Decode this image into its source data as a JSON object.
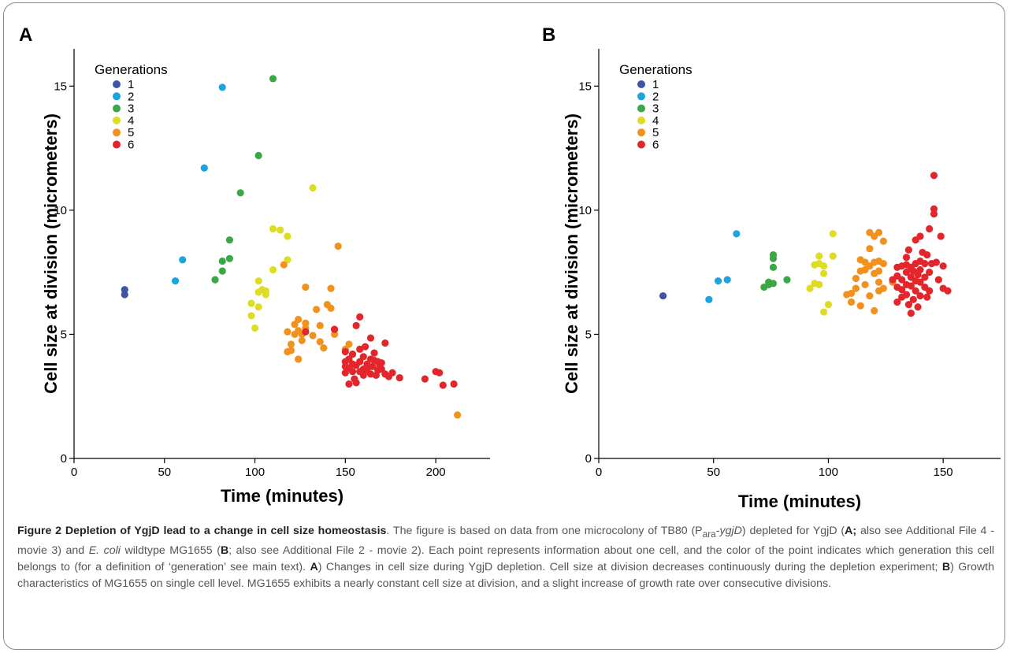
{
  "legend_colors": {
    "1": "#3d55a3",
    "2": "#1ea3df",
    "3": "#3aa844",
    "4": "#dedc24",
    "5": "#f2921e",
    "6": "#e3262c"
  },
  "caption": {
    "title": "Figure 2 Depletion of YgjD lead to a change in cell size homeostasis",
    "seg1": ". The figure is based on data from one microcolony of TB80 (P",
    "sub": "ara",
    "seg2": "-",
    "gene": "ygjD",
    "seg3": ") depleted for YgjD (",
    "labelA1": "A;",
    "seg4": " also see Additional File 4 - movie 3) and ",
    "species": "E. coli",
    "seg5": " wildtype MG1655 (",
    "labelB1": "B",
    "seg6": "; also see Additional File 2 - movie 2). Each point represents information about one cell, and the color of the point indicates which generation this cell belongs to (for a definition of ‘generation’ see main text). ",
    "labelA2": "A",
    "seg7": ") Changes in cell size during YgjD depletion. Cell size at division decreases continuously during the depletion experiment; ",
    "labelB2": "B",
    "seg8": ") Growth characteristics of MG1655 on single cell level. MG1655 exhibits a nearly constant cell size at division, and a slight increase of growth rate over consecutive divisions."
  },
  "chart_data": [
    {
      "panel": "A",
      "type": "scatter",
      "xlabel": "Time (minutes)",
      "ylabel": "Cell size at division (micrometers)",
      "xlim": [
        0,
        230
      ],
      "ylim": [
        0,
        16.5
      ],
      "xticks": [
        0,
        50,
        100,
        150,
        200
      ],
      "yticks": [
        0,
        5,
        10,
        15
      ],
      "legend_title": "Generations",
      "legend_position": "top-left",
      "series": [
        {
          "name": "1",
          "points": [
            [
              28,
              6.8
            ],
            [
              28,
              6.6
            ]
          ]
        },
        {
          "name": "2",
          "points": [
            [
              56,
              7.15
            ],
            [
              60,
              8.0
            ],
            [
              72,
              11.7
            ],
            [
              82,
              14.95
            ]
          ]
        },
        {
          "name": "3",
          "points": [
            [
              78,
              7.2
            ],
            [
              82,
              7.55
            ],
            [
              82,
              7.95
            ],
            [
              86,
              8.05
            ],
            [
              86,
              8.8
            ],
            [
              92,
              10.7
            ],
            [
              102,
              12.2
            ],
            [
              110,
              15.3
            ]
          ]
        },
        {
          "name": "4",
          "points": [
            [
              98,
              6.25
            ],
            [
              98,
              5.75
            ],
            [
              100,
              5.25
            ],
            [
              102,
              6.7
            ],
            [
              102,
              7.15
            ],
            [
              102,
              6.1
            ],
            [
              104,
              6.8
            ],
            [
              106,
              6.75
            ],
            [
              106,
              6.6
            ],
            [
              110,
              7.6
            ],
            [
              110,
              9.25
            ],
            [
              114,
              9.2
            ],
            [
              118,
              8.95
            ],
            [
              118,
              8.0
            ],
            [
              132,
              10.9
            ]
          ]
        },
        {
          "name": "5",
          "points": [
            [
              116,
              7.8
            ],
            [
              118,
              5.1
            ],
            [
              118,
              4.3
            ],
            [
              120,
              4.6
            ],
            [
              120,
              4.35
            ],
            [
              122,
              5.0
            ],
            [
              122,
              5.4
            ],
            [
              124,
              4.0
            ],
            [
              124,
              5.6
            ],
            [
              124,
              5.15
            ],
            [
              126,
              4.75
            ],
            [
              126,
              5.0
            ],
            [
              128,
              6.9
            ],
            [
              128,
              5.45
            ],
            [
              128,
              5.25
            ],
            [
              132,
              4.95
            ],
            [
              134,
              6.0
            ],
            [
              136,
              4.7
            ],
            [
              136,
              5.35
            ],
            [
              138,
              4.45
            ],
            [
              140,
              6.2
            ],
            [
              142,
              6.05
            ],
            [
              142,
              6.85
            ],
            [
              144,
              5.0
            ],
            [
              146,
              8.55
            ],
            [
              150,
              4.4
            ],
            [
              152,
              4.6
            ],
            [
              212,
              1.75
            ]
          ]
        },
        {
          "name": "6",
          "points": [
            [
              128,
              5.1
            ],
            [
              144,
              5.2
            ],
            [
              150,
              4.3
            ],
            [
              150,
              3.9
            ],
            [
              150,
              3.7
            ],
            [
              150,
              3.45
            ],
            [
              152,
              4.0
            ],
            [
              152,
              3.65
            ],
            [
              152,
              3.0
            ],
            [
              154,
              3.5
            ],
            [
              154,
              4.2
            ],
            [
              154,
              3.8
            ],
            [
              155,
              3.2
            ],
            [
              156,
              3.75
            ],
            [
              156,
              5.35
            ],
            [
              156,
              3.05
            ],
            [
              158,
              3.9
            ],
            [
              158,
              4.4
            ],
            [
              158,
              3.5
            ],
            [
              158,
              5.7
            ],
            [
              160,
              3.6
            ],
            [
              160,
              4.1
            ],
            [
              160,
              3.35
            ],
            [
              161,
              4.5
            ],
            [
              162,
              3.8
            ],
            [
              162,
              3.55
            ],
            [
              164,
              4.0
            ],
            [
              164,
              4.85
            ],
            [
              164,
              3.4
            ],
            [
              165,
              3.7
            ],
            [
              166,
              3.95
            ],
            [
              166,
              4.25
            ],
            [
              167,
              3.35
            ],
            [
              168,
              3.55
            ],
            [
              168,
              3.9
            ],
            [
              169,
              3.75
            ],
            [
              170,
              3.6
            ],
            [
              170,
              3.85
            ],
            [
              172,
              3.4
            ],
            [
              172,
              4.65
            ],
            [
              174,
              3.3
            ],
            [
              176,
              3.45
            ],
            [
              180,
              3.25
            ],
            [
              194,
              3.2
            ],
            [
              200,
              3.5
            ],
            [
              202,
              3.45
            ],
            [
              204,
              2.95
            ],
            [
              210,
              3.0
            ]
          ]
        }
      ]
    },
    {
      "panel": "B",
      "type": "scatter",
      "xlabel": "Time (minutes)",
      "ylabel": "Cell size at division (micrometers)",
      "xlim": [
        0,
        175
      ],
      "ylim": [
        0,
        16.5
      ],
      "xticks": [
        0,
        50,
        100,
        150
      ],
      "yticks": [
        0,
        5,
        10,
        15
      ],
      "legend_title": "Generations",
      "legend_position": "top-left",
      "series": [
        {
          "name": "1",
          "points": [
            [
              28,
              6.55
            ]
          ]
        },
        {
          "name": "2",
          "points": [
            [
              48,
              6.4
            ],
            [
              52,
              7.15
            ],
            [
              56,
              7.2
            ],
            [
              60,
              9.05
            ]
          ]
        },
        {
          "name": "3",
          "points": [
            [
              72,
              6.9
            ],
            [
              74,
              7.1
            ],
            [
              74,
              7.0
            ],
            [
              76,
              8.2
            ],
            [
              76,
              8.05
            ],
            [
              76,
              7.7
            ],
            [
              76,
              7.05
            ],
            [
              82,
              7.2
            ]
          ]
        },
        {
          "name": "4",
          "points": [
            [
              92,
              6.85
            ],
            [
              94,
              7.05
            ],
            [
              94,
              7.8
            ],
            [
              96,
              8.15
            ],
            [
              96,
              7.85
            ],
            [
              96,
              7.0
            ],
            [
              98,
              7.75
            ],
            [
              98,
              7.45
            ],
            [
              98,
              5.9
            ],
            [
              100,
              6.2
            ],
            [
              102,
              8.15
            ],
            [
              102,
              9.05
            ]
          ]
        },
        {
          "name": "5",
          "points": [
            [
              108,
              6.6
            ],
            [
              110,
              6.3
            ],
            [
              110,
              6.65
            ],
            [
              112,
              7.25
            ],
            [
              112,
              6.85
            ],
            [
              114,
              7.55
            ],
            [
              114,
              8.0
            ],
            [
              114,
              6.15
            ],
            [
              116,
              7.9
            ],
            [
              116,
              7.6
            ],
            [
              116,
              7.0
            ],
            [
              118,
              9.1
            ],
            [
              118,
              8.45
            ],
            [
              118,
              7.75
            ],
            [
              118,
              6.55
            ],
            [
              120,
              7.9
            ],
            [
              120,
              7.45
            ],
            [
              120,
              8.95
            ],
            [
              120,
              5.95
            ],
            [
              122,
              7.95
            ],
            [
              122,
              9.1
            ],
            [
              122,
              7.55
            ],
            [
              122,
              7.1
            ],
            [
              122,
              6.75
            ],
            [
              124,
              7.85
            ],
            [
              124,
              8.75
            ],
            [
              124,
              6.85
            ],
            [
              128,
              7.1
            ]
          ]
        },
        {
          "name": "6",
          "points": [
            [
              128,
              7.2
            ],
            [
              130,
              7.7
            ],
            [
              130,
              7.35
            ],
            [
              130,
              6.9
            ],
            [
              130,
              6.3
            ],
            [
              132,
              7.75
            ],
            [
              132,
              7.2
            ],
            [
              132,
              6.8
            ],
            [
              132,
              6.5
            ],
            [
              134,
              7.8
            ],
            [
              134,
              7.5
            ],
            [
              134,
              7.0
            ],
            [
              134,
              6.6
            ],
            [
              134,
              8.1
            ],
            [
              135,
              8.4
            ],
            [
              135,
              6.2
            ],
            [
              136,
              7.7
            ],
            [
              136,
              7.3
            ],
            [
              136,
              6.95
            ],
            [
              136,
              5.85
            ],
            [
              137,
              7.55
            ],
            [
              137,
              6.4
            ],
            [
              138,
              7.85
            ],
            [
              138,
              7.15
            ],
            [
              138,
              6.75
            ],
            [
              138,
              8.8
            ],
            [
              139,
              7.4
            ],
            [
              139,
              6.1
            ],
            [
              140,
              7.95
            ],
            [
              140,
              7.6
            ],
            [
              140,
              7.1
            ],
            [
              140,
              6.55
            ],
            [
              140,
              8.95
            ],
            [
              141,
              8.3
            ],
            [
              142,
              7.85
            ],
            [
              142,
              7.3
            ],
            [
              142,
              6.9
            ],
            [
              143,
              8.2
            ],
            [
              143,
              6.5
            ],
            [
              144,
              9.25
            ],
            [
              144,
              7.5
            ],
            [
              144,
              6.75
            ],
            [
              145,
              7.85
            ],
            [
              146,
              11.4
            ],
            [
              146,
              10.05
            ],
            [
              146,
              9.85
            ],
            [
              147,
              7.9
            ],
            [
              148,
              7.2
            ],
            [
              149,
              8.95
            ],
            [
              150,
              7.75
            ],
            [
              150,
              6.85
            ],
            [
              152,
              6.75
            ]
          ]
        }
      ]
    }
  ]
}
